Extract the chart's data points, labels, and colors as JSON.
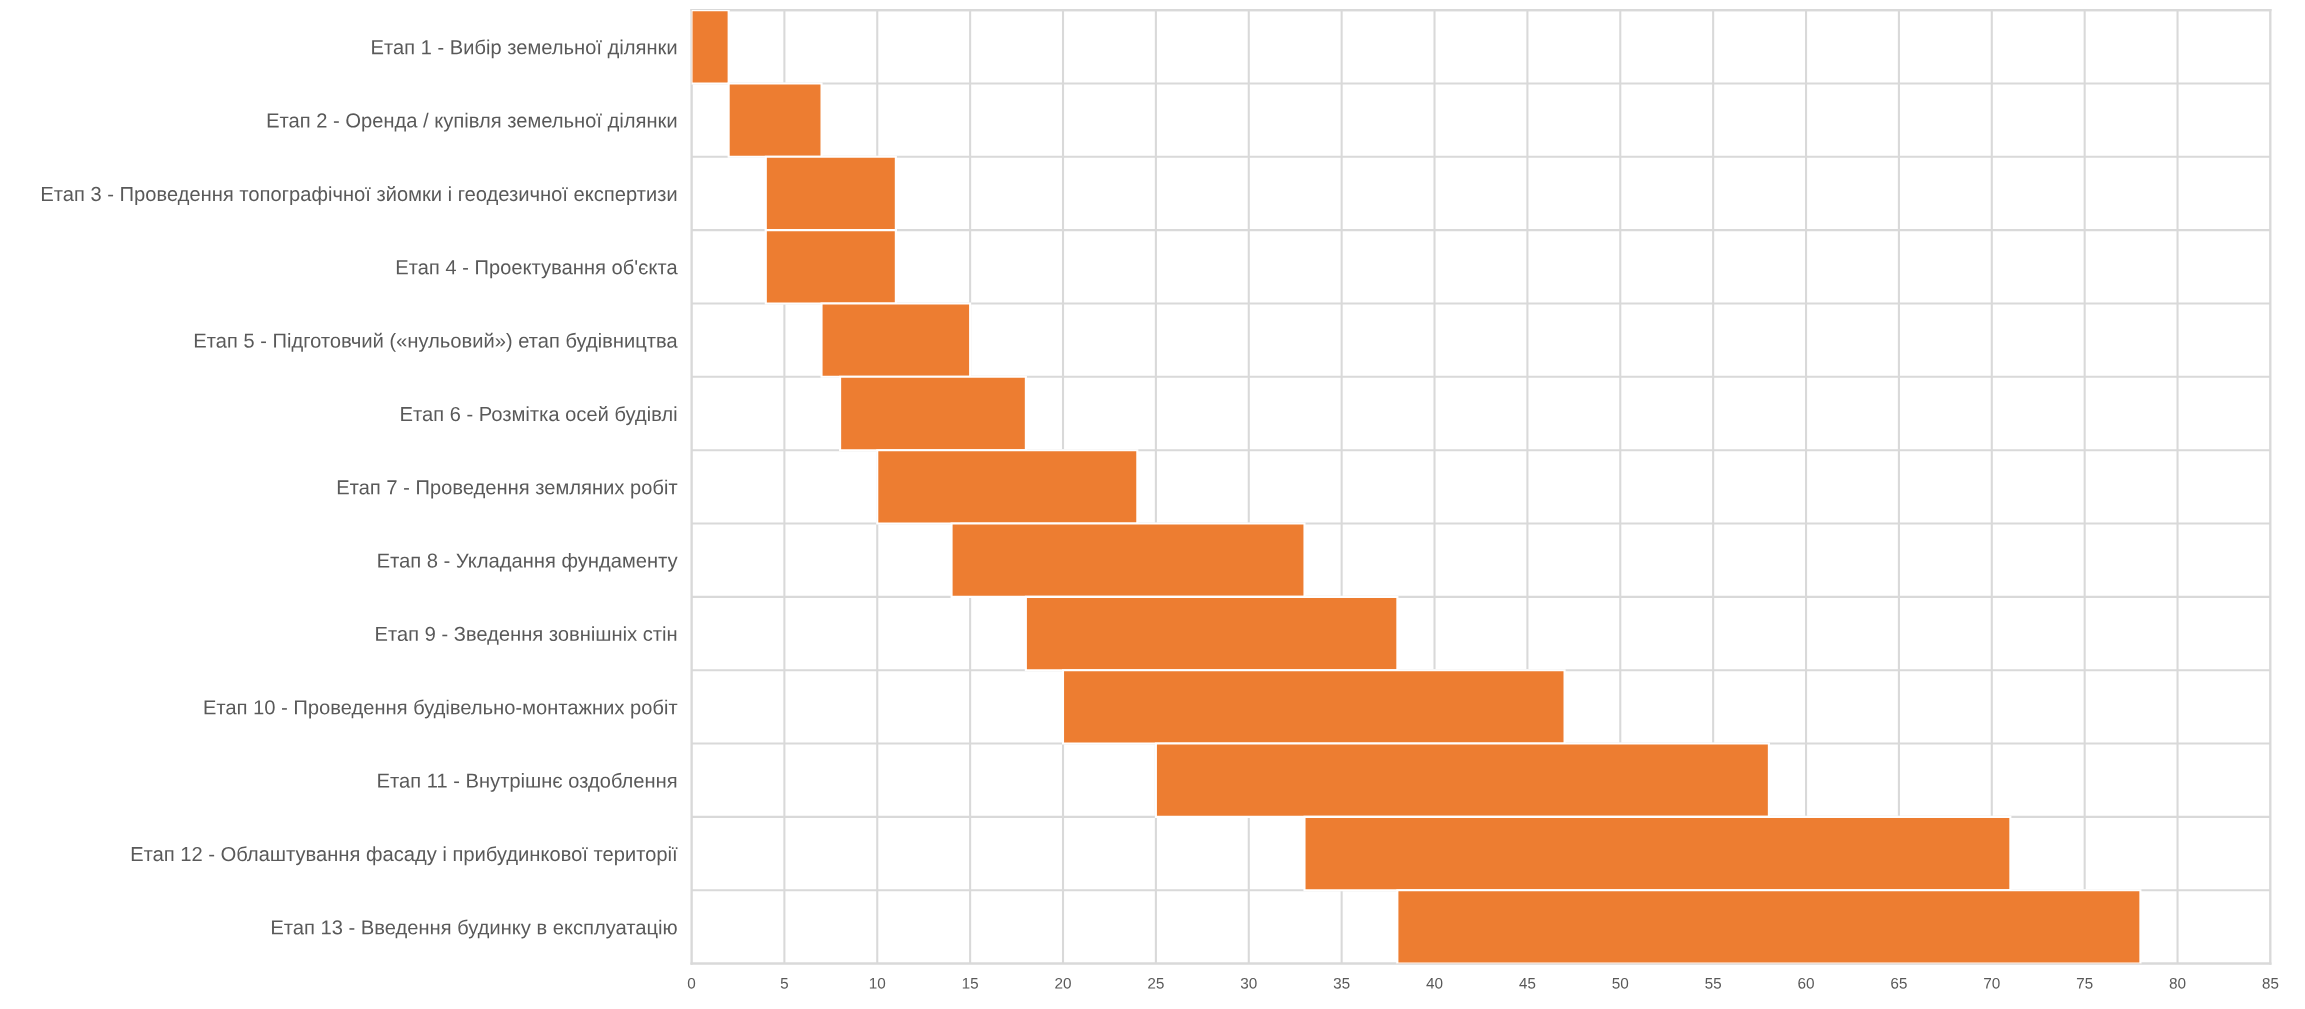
{
  "chart_data": {
    "type": "bar",
    "orientation": "horizontal",
    "categories": [
      "Етап 1 - Вибір земельної ділянки",
      "Етап 2 - Оренда / купівля земельної ділянки",
      "Етап 3 - Проведення топографічної зйомки і геодезичної експертизи",
      "Етап 4 - Проектування об'єкта",
      "Етап 5 - Підготовчий («нульовий») етап будівництва",
      "Етап 6 - Розмітка осей будівлі",
      "Етап 7 - Проведення земляних робіт",
      "Етап 8 - Укладання фундаменту",
      "Етап 9 - Зведення зовнішніх стін",
      "Етап 10 - Проведення будівельно-монтажних робіт",
      "Етап 11 - Внутрішнє оздоблення",
      "Етап 12 - Облаштування фасаду і прибудинкової території",
      "Етап 13 - Введення будинку в експлуатацію"
    ],
    "base": [
      0,
      2,
      4,
      4,
      7,
      8,
      10,
      14,
      18,
      20,
      25,
      33,
      38
    ],
    "values": [
      2,
      5,
      7,
      7,
      8,
      10,
      14,
      19,
      20,
      27,
      33,
      38,
      40
    ],
    "color": "#ed7d31",
    "xlim": [
      0,
      85
    ],
    "xticks": [
      0,
      5,
      10,
      15,
      20,
      25,
      30,
      35,
      40,
      45,
      50,
      55,
      60,
      65,
      70,
      75,
      80,
      85
    ],
    "grid": true
  }
}
